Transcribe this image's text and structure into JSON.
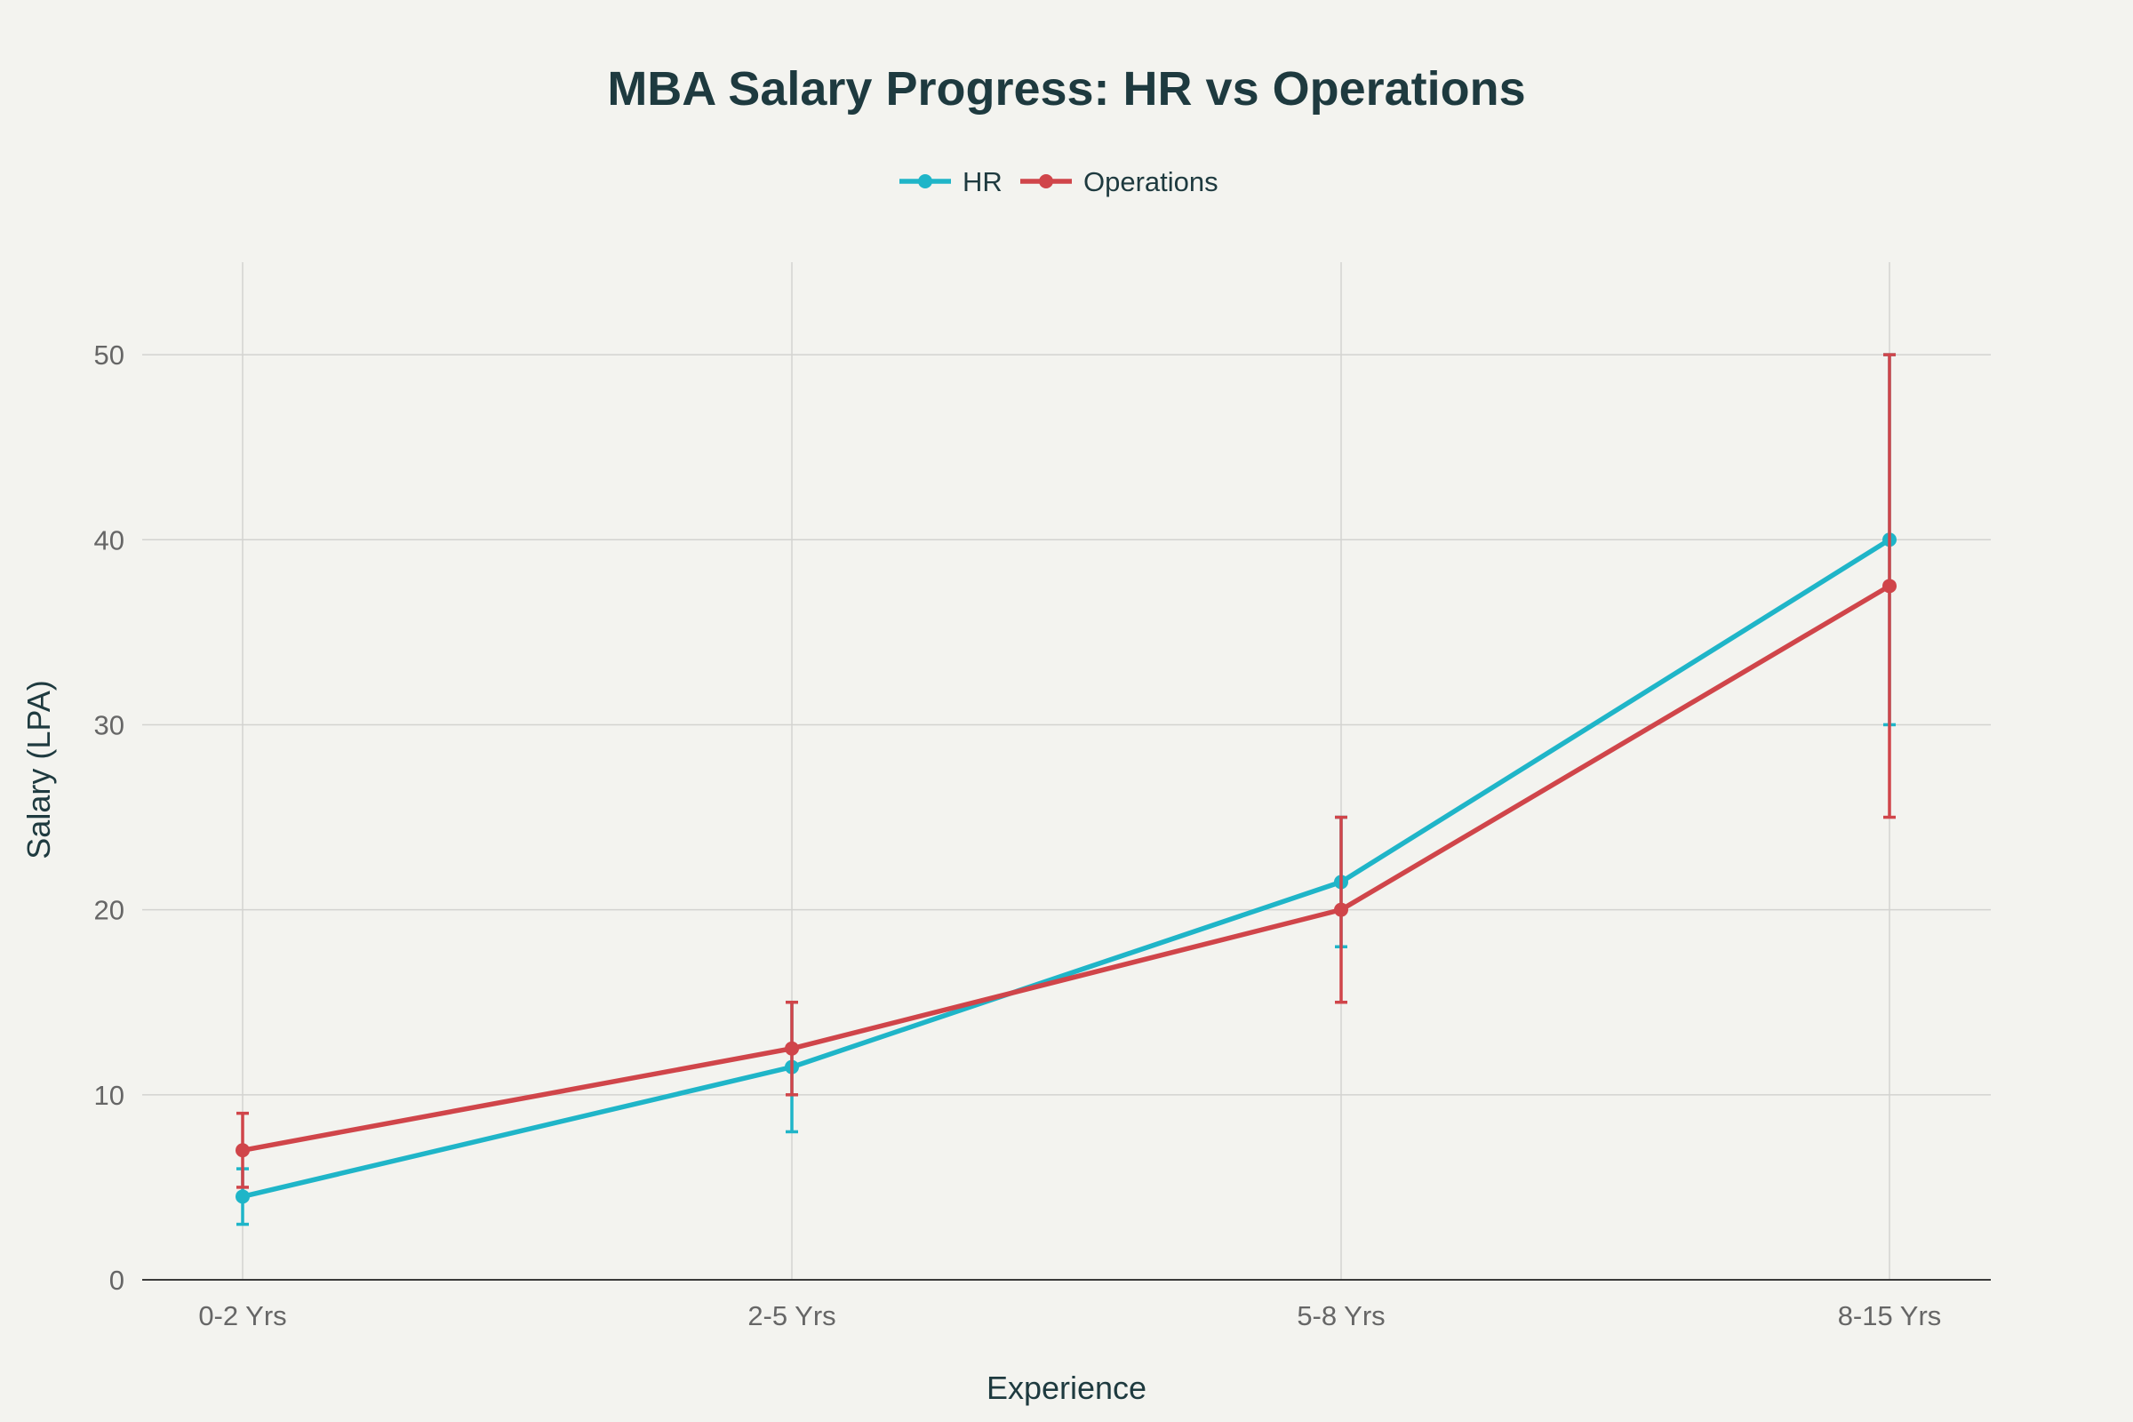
{
  "chart_data": {
    "type": "line",
    "title": "MBA Salary Progress: HR vs Operations",
    "xlabel": "Experience",
    "ylabel": "Salary (LPA)",
    "categories": [
      "0-2 Yrs",
      "2-5 Yrs",
      "5-8 Yrs",
      "8-15 Yrs"
    ],
    "ylim": [
      0,
      55
    ],
    "yticks": [
      0,
      10,
      20,
      30,
      40,
      50
    ],
    "grid": true,
    "legend_position": "top-center",
    "series": [
      {
        "name": "HR",
        "color": "#1fb5c8",
        "values": [
          4.5,
          11.5,
          21.5,
          40
        ],
        "error_low": [
          3,
          8,
          18,
          30
        ],
        "error_high": [
          6,
          15,
          25,
          50
        ]
      },
      {
        "name": "Operations",
        "color": "#d0454a",
        "values": [
          7,
          12.5,
          20,
          37.5
        ],
        "error_low": [
          5,
          10,
          15,
          25
        ],
        "error_high": [
          9,
          15,
          25,
          50
        ]
      }
    ]
  }
}
